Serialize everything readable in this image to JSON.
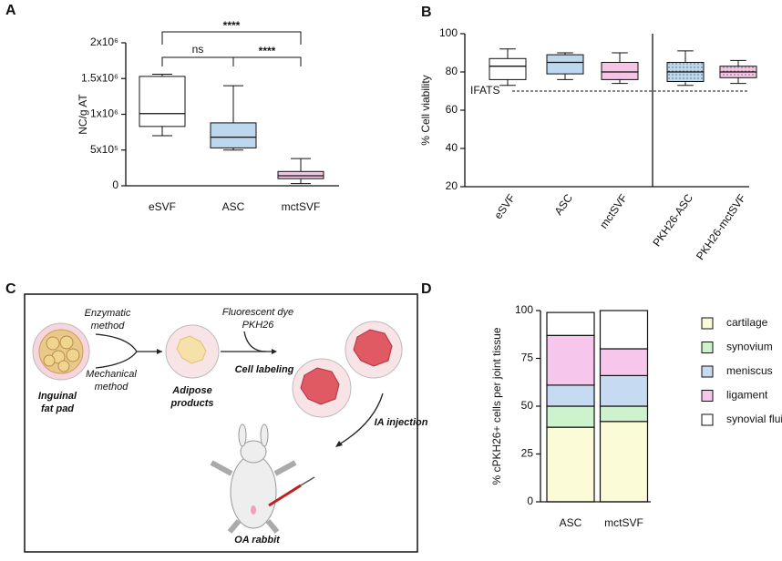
{
  "chart_data": [
    {
      "label": "A",
      "type": "box",
      "ylabel": "NC/g AT",
      "categories": [
        "eSVF",
        "ASC",
        "mctSVF"
      ],
      "boxes": [
        {
          "min": 700000,
          "q1": 830000,
          "median": 1010000,
          "q3": 1530000,
          "max": 1560000
        },
        {
          "min": 500000,
          "q1": 530000,
          "median": 680000,
          "q3": 880000,
          "max": 1400000
        },
        {
          "min": 30000,
          "q1": 100000,
          "median": 140000,
          "q3": 200000,
          "max": 380000
        }
      ],
      "colors": [
        "#ffffff",
        "#bdd7ee",
        "#f6c5e6"
      ],
      "ylim": [
        0,
        2000000
      ],
      "yticks": [
        0,
        {
          "value": 500000,
          "label": "5x10⁵"
        },
        {
          "value": 1000000,
          "label": "1x10⁶"
        },
        {
          "value": 1500000,
          "label": "1.5x10⁶"
        },
        {
          "value": 2000000,
          "label": "2x10⁶"
        }
      ],
      "annotations": [
        {
          "text": "ns",
          "between": [
            "eSVF",
            "ASC"
          ]
        },
        {
          "text": "****",
          "between": [
            "ASC",
            "mctSVF"
          ]
        },
        {
          "text": "****",
          "between": [
            "eSVF",
            "mctSVF"
          ]
        }
      ]
    },
    {
      "label": "B",
      "type": "box",
      "ylabel": "% Cell viability",
      "categories": [
        "eSVF",
        "ASC",
        "mctSVF",
        "PKH26-ASC",
        "PKH26-mctSVF"
      ],
      "boxes": [
        {
          "min": 73,
          "q1": 76,
          "median": 83,
          "q3": 87,
          "max": 92
        },
        {
          "min": 76,
          "q1": 79,
          "median": 85,
          "q3": 89,
          "max": 90
        },
        {
          "min": 74,
          "q1": 76,
          "median": 80,
          "q3": 85,
          "max": 90
        },
        {
          "min": 73,
          "q1": 75,
          "median": 80,
          "q3": 85,
          "max": 91
        },
        {
          "min": 74,
          "q1": 77,
          "median": 80,
          "q3": 83,
          "max": 86
        }
      ],
      "colors": [
        "#ffffff",
        "#bdd7ee",
        "#f6c5e6",
        "#bdd7ee",
        "#f6c5e6"
      ],
      "dotted": [
        false,
        false,
        false,
        true,
        true
      ],
      "divider_after": "mctSVF",
      "reference_line": {
        "value": 70,
        "label": "IFATS"
      },
      "ylim": [
        20,
        100
      ],
      "yticks": [
        20,
        40,
        60,
        80,
        100
      ]
    },
    {
      "label": "D",
      "type": "stacked_bar",
      "ylabel": "% cPKH26+ cells per joint tissue",
      "categories": [
        "ASC",
        "mctSVF"
      ],
      "series": [
        {
          "name": "cartilage",
          "color": "#fbfbd7",
          "values": [
            39,
            42
          ]
        },
        {
          "name": "synovium",
          "color": "#cdf3cd",
          "values": [
            11,
            8
          ]
        },
        {
          "name": "meniscus",
          "color": "#c6dbf2",
          "values": [
            11,
            16
          ]
        },
        {
          "name": "ligament",
          "color": "#f7c6ec",
          "values": [
            26,
            14
          ]
        },
        {
          "name": "synovial fluid",
          "color": "#ffffff",
          "values": [
            12,
            20
          ]
        }
      ],
      "legend": "right",
      "ylim": [
        0,
        100
      ],
      "yticks": [
        0,
        25,
        50,
        75,
        100
      ]
    }
  ],
  "diagram": {
    "label": "C",
    "enzymatic": [
      "Enzymatic",
      "method"
    ],
    "mechanical": [
      "Mechanical",
      "method"
    ],
    "source": [
      "Inguinal",
      "fat pad"
    ],
    "products": [
      "Adipose",
      "products"
    ],
    "dye": [
      "Fluorescent dye",
      "PKH26"
    ],
    "labeling": "Cell labeling",
    "injection": "IA  injection",
    "animal": "OA rabbit"
  }
}
